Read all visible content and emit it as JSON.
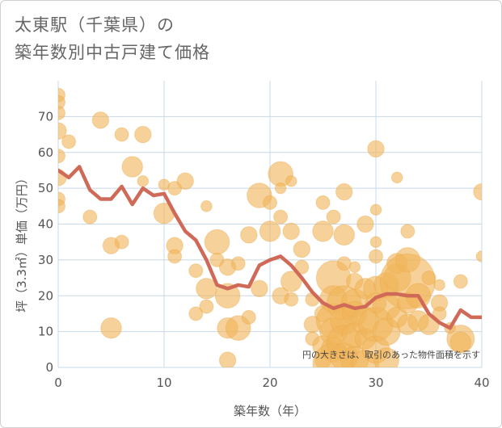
{
  "chart_title": {
    "line1": "太東駅（千葉県）の",
    "line2": "築年数別中古戸建て価格"
  },
  "chart_data": {
    "type": "scatter",
    "xlabel": "築年数（年）",
    "ylabel": "坪（3.3㎡）単価（万円）",
    "xlim": [
      0,
      40
    ],
    "ylim": [
      0,
      80
    ],
    "xticks": [
      0,
      10,
      20,
      30,
      40
    ],
    "yticks": [
      0,
      10,
      20,
      30,
      40,
      50,
      60,
      70
    ],
    "grid": true,
    "note": "円の大きさは、取引のあった物件面積を示す",
    "colors": {
      "bubble": "#f0b45a",
      "line": "#d06a58",
      "grid": "#c8d8e8",
      "plot_bg": "#ffffff"
    },
    "series": [
      {
        "kind": "bubble",
        "points": [
          {
            "x": 0,
            "y": 76,
            "s": 1
          },
          {
            "x": 0,
            "y": 74,
            "s": 1
          },
          {
            "x": 0,
            "y": 71,
            "s": 1
          },
          {
            "x": 0,
            "y": 66,
            "s": 1.2
          },
          {
            "x": 0,
            "y": 59,
            "s": 1
          },
          {
            "x": 0,
            "y": 53,
            "s": 1.2
          },
          {
            "x": 0,
            "y": 47,
            "s": 1
          },
          {
            "x": 0,
            "y": 45,
            "s": 1
          },
          {
            "x": 1,
            "y": 63,
            "s": 1
          },
          {
            "x": 3,
            "y": 42,
            "s": 1
          },
          {
            "x": 4,
            "y": 69,
            "s": 1.2
          },
          {
            "x": 5,
            "y": 34,
            "s": 1.2
          },
          {
            "x": 5,
            "y": 11,
            "s": 1.5
          },
          {
            "x": 6,
            "y": 35,
            "s": 1
          },
          {
            "x": 6,
            "y": 65,
            "s": 1
          },
          {
            "x": 7,
            "y": 56,
            "s": 1.5
          },
          {
            "x": 8,
            "y": 65,
            "s": 1.2
          },
          {
            "x": 8,
            "y": 52,
            "s": 0.8
          },
          {
            "x": 10,
            "y": 51,
            "s": 0.8
          },
          {
            "x": 10,
            "y": 43,
            "s": 1.5
          },
          {
            "x": 11,
            "y": 50,
            "s": 1
          },
          {
            "x": 11,
            "y": 34,
            "s": 1.2
          },
          {
            "x": 11,
            "y": 31,
            "s": 1
          },
          {
            "x": 12,
            "y": 52,
            "s": 1.2
          },
          {
            "x": 13,
            "y": 27,
            "s": 1
          },
          {
            "x": 13,
            "y": 15,
            "s": 1
          },
          {
            "x": 14,
            "y": 45,
            "s": 0.8
          },
          {
            "x": 14,
            "y": 22,
            "s": 1.5
          },
          {
            "x": 14,
            "y": 17,
            "s": 1
          },
          {
            "x": 15,
            "y": 35,
            "s": 1.8
          },
          {
            "x": 15,
            "y": 30,
            "s": 1
          },
          {
            "x": 16,
            "y": 28,
            "s": 1.2
          },
          {
            "x": 16,
            "y": 20,
            "s": 1.8
          },
          {
            "x": 16,
            "y": 11,
            "s": 1.5
          },
          {
            "x": 16,
            "y": 2,
            "s": 1.2
          },
          {
            "x": 17,
            "y": 29,
            "s": 1
          },
          {
            "x": 17,
            "y": 11,
            "s": 1.8
          },
          {
            "x": 18,
            "y": 37,
            "s": 1.2
          },
          {
            "x": 18,
            "y": 14,
            "s": 1
          },
          {
            "x": 19,
            "y": 48,
            "s": 1.8
          },
          {
            "x": 19,
            "y": 22,
            "s": 1.2
          },
          {
            "x": 20,
            "y": 46,
            "s": 1
          },
          {
            "x": 20,
            "y": 38,
            "s": 1.5
          },
          {
            "x": 21,
            "y": 54,
            "s": 1.8
          },
          {
            "x": 21,
            "y": 50,
            "s": 0.8
          },
          {
            "x": 21,
            "y": 42,
            "s": 1
          },
          {
            "x": 21,
            "y": 20,
            "s": 1.2
          },
          {
            "x": 22,
            "y": 52,
            "s": 0.8
          },
          {
            "x": 22,
            "y": 38,
            "s": 1.2
          },
          {
            "x": 22,
            "y": 24,
            "s": 1.5
          },
          {
            "x": 22,
            "y": 19,
            "s": 1
          },
          {
            "x": 23,
            "y": 33,
            "s": 1.2
          },
          {
            "x": 23,
            "y": 28,
            "s": 1
          },
          {
            "x": 24,
            "y": 19,
            "s": 1
          },
          {
            "x": 24,
            "y": 12,
            "s": 1.2
          },
          {
            "x": 24,
            "y": 8,
            "s": 1
          },
          {
            "x": 25,
            "y": 46,
            "s": 1
          },
          {
            "x": 25,
            "y": 38,
            "s": 1.5
          },
          {
            "x": 25,
            "y": 15,
            "s": 1.2
          },
          {
            "x": 25,
            "y": 6,
            "s": 1.5
          },
          {
            "x": 25,
            "y": 2,
            "s": 1.2
          },
          {
            "x": 26,
            "y": 42,
            "s": 1
          },
          {
            "x": 26,
            "y": 25,
            "s": 2.5
          },
          {
            "x": 26,
            "y": 19,
            "s": 2
          },
          {
            "x": 26,
            "y": 13,
            "s": 2.5
          },
          {
            "x": 26,
            "y": 10,
            "s": 2
          },
          {
            "x": 26,
            "y": 5,
            "s": 1.8
          },
          {
            "x": 26,
            "y": 1,
            "s": 3
          },
          {
            "x": 27,
            "y": 49,
            "s": 1.2
          },
          {
            "x": 27,
            "y": 37,
            "s": 1.5
          },
          {
            "x": 27,
            "y": 29,
            "s": 1
          },
          {
            "x": 27,
            "y": 18,
            "s": 2.5
          },
          {
            "x": 27,
            "y": 13,
            "s": 2
          },
          {
            "x": 27,
            "y": 7,
            "s": 2.5
          },
          {
            "x": 27,
            "y": 3,
            "s": 2
          },
          {
            "x": 28,
            "y": 28,
            "s": 0.8
          },
          {
            "x": 28,
            "y": 24,
            "s": 1.2
          },
          {
            "x": 28,
            "y": 18,
            "s": 2
          },
          {
            "x": 28,
            "y": 15,
            "s": 1.8
          },
          {
            "x": 28,
            "y": 9,
            "s": 1.8
          },
          {
            "x": 28,
            "y": 2,
            "s": 2
          },
          {
            "x": 29,
            "y": 40,
            "s": 1.2
          },
          {
            "x": 29,
            "y": 22,
            "s": 1.5
          },
          {
            "x": 29,
            "y": 13,
            "s": 2
          },
          {
            "x": 29,
            "y": 8,
            "s": 1.5
          },
          {
            "x": 29,
            "y": 1,
            "s": 2
          },
          {
            "x": 30,
            "y": 61,
            "s": 1.2
          },
          {
            "x": 30,
            "y": 44,
            "s": 0.8
          },
          {
            "x": 30,
            "y": 35,
            "s": 0.8
          },
          {
            "x": 30,
            "y": 31,
            "s": 1
          },
          {
            "x": 30,
            "y": 22,
            "s": 1.8
          },
          {
            "x": 30,
            "y": 18,
            "s": 1.5
          },
          {
            "x": 30,
            "y": 12,
            "s": 2.5
          },
          {
            "x": 30,
            "y": 5,
            "s": 2
          },
          {
            "x": 31,
            "y": 23,
            "s": 1.8
          },
          {
            "x": 31,
            "y": 17,
            "s": 2
          },
          {
            "x": 31,
            "y": 10,
            "s": 2
          },
          {
            "x": 31,
            "y": 2,
            "s": 1.8
          },
          {
            "x": 32,
            "y": 53,
            "s": 0.8
          },
          {
            "x": 32,
            "y": 29,
            "s": 1.5
          },
          {
            "x": 32,
            "y": 25,
            "s": 2
          },
          {
            "x": 32,
            "y": 14,
            "s": 1.5
          },
          {
            "x": 33,
            "y": 38,
            "s": 1
          },
          {
            "x": 33,
            "y": 30,
            "s": 1.8
          },
          {
            "x": 33,
            "y": 24,
            "s": 4
          },
          {
            "x": 33,
            "y": 18,
            "s": 1.5
          },
          {
            "x": 33,
            "y": 12,
            "s": 1.5
          },
          {
            "x": 34,
            "y": 20,
            "s": 1.8
          },
          {
            "x": 34,
            "y": 13,
            "s": 1.5
          },
          {
            "x": 35,
            "y": 25,
            "s": 1
          },
          {
            "x": 35,
            "y": 12,
            "s": 1.5
          },
          {
            "x": 36,
            "y": 23,
            "s": 0.8
          },
          {
            "x": 36,
            "y": 18,
            "s": 1.2
          },
          {
            "x": 36,
            "y": 15,
            "s": 1
          },
          {
            "x": 37,
            "y": 11,
            "s": 0.8
          },
          {
            "x": 38,
            "y": 24,
            "s": 1
          },
          {
            "x": 38,
            "y": 8,
            "s": 2
          },
          {
            "x": 38,
            "y": 7,
            "s": 1.5
          },
          {
            "x": 40,
            "y": 49,
            "s": 1.2
          },
          {
            "x": 40,
            "y": 31,
            "s": 0.8
          }
        ]
      },
      {
        "kind": "line",
        "x": [
          0,
          1,
          2,
          3,
          4,
          5,
          6,
          7,
          8,
          9,
          10,
          11,
          12,
          13,
          14,
          15,
          16,
          17,
          18,
          19,
          20,
          21,
          22,
          23,
          24,
          25,
          26,
          27,
          28,
          29,
          30,
          31,
          32,
          33,
          34,
          35,
          36,
          37,
          38,
          39,
          40
        ],
        "values": [
          55,
          53,
          56,
          49.5,
          47,
          47,
          50.5,
          45.5,
          50,
          48,
          48.5,
          43,
          38,
          35.5,
          30,
          23,
          22,
          23,
          22.5,
          28.5,
          30,
          31,
          28.5,
          25,
          21,
          18,
          16.5,
          17.5,
          16.5,
          17,
          19.5,
          20.5,
          20.5,
          20,
          20,
          15,
          12.5,
          11,
          16,
          14,
          14
        ]
      }
    ]
  }
}
